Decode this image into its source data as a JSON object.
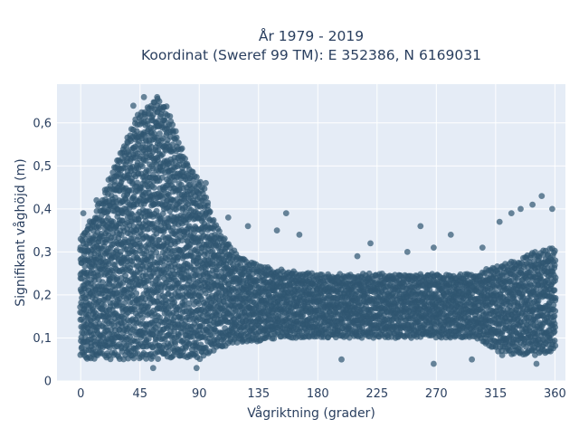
{
  "chart_data": {
    "type": "scatter",
    "title_line1": "År 1979 - 2019",
    "title_line2": "Koordinat (Sweref 99 TM): E 352386, N 6169031",
    "xlabel": "Vågriktning (grader)",
    "ylabel": "Signifikant våghöjd (m)",
    "xlim": [
      -18,
      368
    ],
    "ylim": [
      0,
      0.69
    ],
    "x_ticks": [
      0,
      45,
      90,
      135,
      180,
      225,
      270,
      315,
      360
    ],
    "x_tick_labels": [
      "0",
      "45",
      "90",
      "135",
      "180",
      "225",
      "270",
      "315",
      "360"
    ],
    "y_ticks": [
      0,
      0.1,
      0.2,
      0.3,
      0.4,
      0.5,
      0.6
    ],
    "y_tick_labels": [
      "0",
      "0,1",
      "0,2",
      "0,3",
      "0,4",
      "0,5",
      "0,6"
    ],
    "grid": true,
    "marker_color": "#2f5570",
    "background_color": "#e5ecf6",
    "envelope": {
      "x": [
        0,
        10,
        20,
        30,
        40,
        45,
        50,
        55,
        60,
        65,
        70,
        75,
        80,
        85,
        90,
        95,
        100,
        110,
        120,
        135,
        150,
        180,
        225,
        270,
        300,
        315,
        330,
        345,
        360
      ],
      "upper": [
        0.34,
        0.39,
        0.46,
        0.54,
        0.6,
        0.63,
        0.64,
        0.65,
        0.66,
        0.64,
        0.6,
        0.56,
        0.52,
        0.49,
        0.47,
        0.44,
        0.38,
        0.33,
        0.29,
        0.27,
        0.26,
        0.25,
        0.25,
        0.25,
        0.25,
        0.27,
        0.28,
        0.3,
        0.31
      ],
      "lower": [
        0.05,
        0.05,
        0.05,
        0.05,
        0.05,
        0.05,
        0.05,
        0.05,
        0.05,
        0.05,
        0.05,
        0.05,
        0.05,
        0.05,
        0.05,
        0.06,
        0.07,
        0.08,
        0.09,
        0.09,
        0.1,
        0.1,
        0.1,
        0.1,
        0.1,
        0.07,
        0.06,
        0.06,
        0.07
      ]
    },
    "outliers": [
      {
        "x": 2,
        "y": 0.39
      },
      {
        "x": 12,
        "y": 0.42
      },
      {
        "x": 28,
        "y": 0.5
      },
      {
        "x": 40,
        "y": 0.64
      },
      {
        "x": 48,
        "y": 0.66
      },
      {
        "x": 55,
        "y": 0.03
      },
      {
        "x": 58,
        "y": 0.66
      },
      {
        "x": 88,
        "y": 0.03
      },
      {
        "x": 95,
        "y": 0.46
      },
      {
        "x": 112,
        "y": 0.38
      },
      {
        "x": 127,
        "y": 0.36
      },
      {
        "x": 149,
        "y": 0.35
      },
      {
        "x": 156,
        "y": 0.39
      },
      {
        "x": 166,
        "y": 0.34
      },
      {
        "x": 198,
        "y": 0.05
      },
      {
        "x": 210,
        "y": 0.29
      },
      {
        "x": 220,
        "y": 0.32
      },
      {
        "x": 248,
        "y": 0.3
      },
      {
        "x": 258,
        "y": 0.36
      },
      {
        "x": 268,
        "y": 0.04
      },
      {
        "x": 268,
        "y": 0.31
      },
      {
        "x": 281,
        "y": 0.34
      },
      {
        "x": 297,
        "y": 0.05
      },
      {
        "x": 305,
        "y": 0.31
      },
      {
        "x": 318,
        "y": 0.37
      },
      {
        "x": 327,
        "y": 0.39
      },
      {
        "x": 334,
        "y": 0.4
      },
      {
        "x": 343,
        "y": 0.41
      },
      {
        "x": 350,
        "y": 0.43
      },
      {
        "x": 358,
        "y": 0.4
      },
      {
        "x": 346,
        "y": 0.04
      },
      {
        "x": 320,
        "y": 0.06
      }
    ]
  }
}
